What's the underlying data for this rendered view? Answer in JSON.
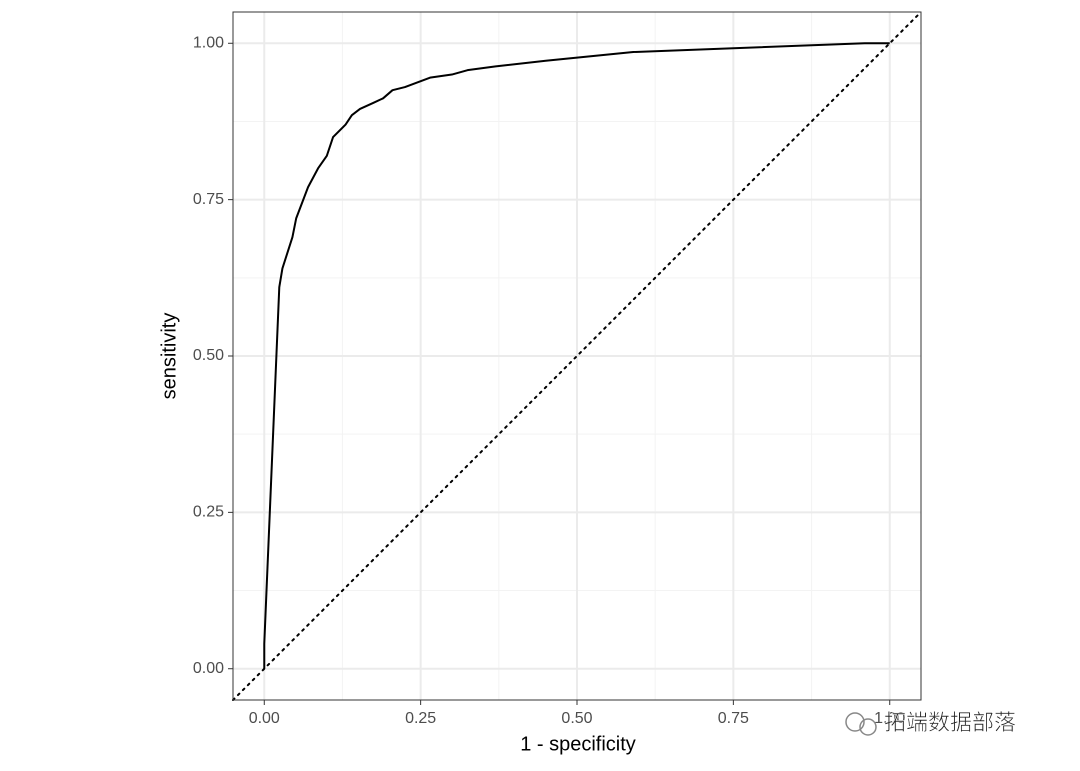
{
  "chart_data": {
    "type": "line",
    "x_label": "1 - specificity",
    "y_label": "sensitivity",
    "x": [
      0,
      0,
      0.024,
      0.029,
      0.045,
      0.051,
      0.07,
      0.086,
      0.1,
      0.11,
      0.13,
      0.14,
      0.153,
      0.175,
      0.19,
      0.205,
      0.225,
      0.265,
      0.3,
      0.325,
      0.37,
      0.45,
      0.53,
      0.59,
      0.75,
      0.96,
      1.0
    ],
    "values": [
      0,
      0.04,
      0.61,
      0.64,
      0.69,
      0.72,
      0.77,
      0.8,
      0.82,
      0.85,
      0.87,
      0.885,
      0.895,
      0.905,
      0.912,
      0.925,
      0.93,
      0.945,
      0.95,
      0.957,
      0.963,
      0.972,
      0.98,
      0.986,
      0.992,
      1.0,
      1.0
    ],
    "color": "#000000",
    "reference_line": "diagonal",
    "xlim": [
      -0.05,
      1.05
    ],
    "ylim": [
      -0.05,
      1.05
    ],
    "xticks": [
      {
        "value": 0,
        "label": "0.00"
      },
      0.25,
      {
        "value": 0.5,
        "label": "0.50"
      },
      0.75,
      {
        "value": 1,
        "label": "1.00"
      }
    ],
    "yticks": [
      {
        "value": 0,
        "label": "0.00"
      },
      0.25,
      {
        "value": 0.5,
        "label": "0.50"
      },
      0.75,
      {
        "value": 1,
        "label": "1.00"
      }
    ],
    "minor_xticks": [
      0.125,
      0.375,
      0.625,
      0.875
    ],
    "minor_yticks": [
      0.125,
      0.375,
      0.625,
      0.875
    ],
    "grid": true,
    "watermark": "拓端数据部落"
  }
}
